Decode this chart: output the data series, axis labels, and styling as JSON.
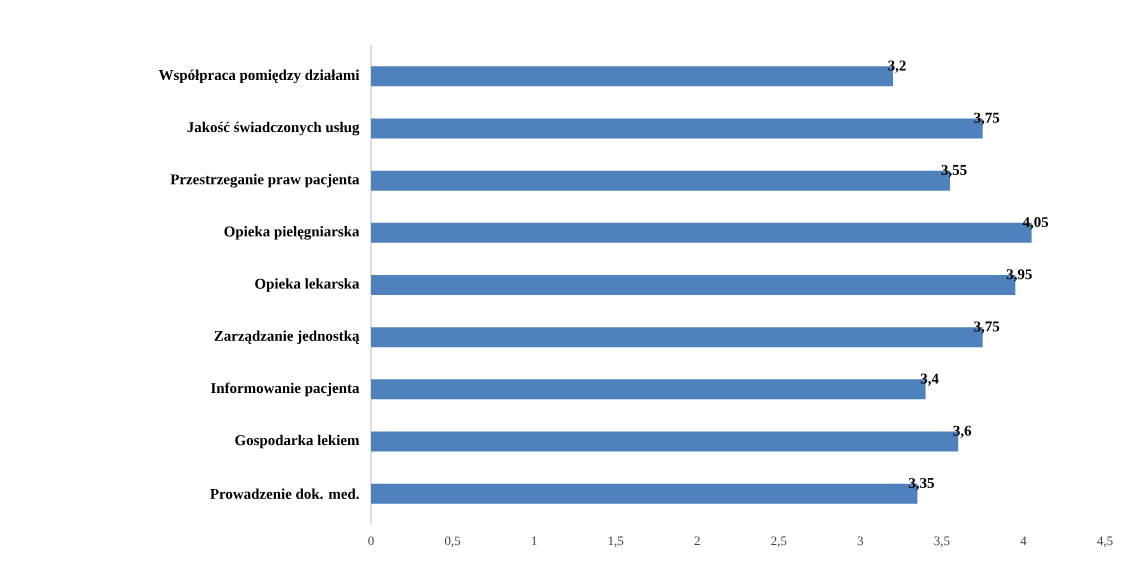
{
  "chart_data": {
    "type": "bar",
    "orientation": "horizontal",
    "categories": [
      "Współpraca pomiędzy działami",
      "Jakość świadczonych usług",
      "Przestrzeganie praw pacjenta",
      "Opieka pielęgniarska",
      "Opieka lekarska",
      "Zarządzanie jednostką",
      "Informowanie pacjenta",
      "Gospodarka lekiem",
      "Prowadzenie dok. med."
    ],
    "values": [
      3.2,
      3.75,
      3.55,
      4.05,
      3.95,
      3.75,
      3.4,
      3.6,
      3.35
    ],
    "value_labels": [
      "3,2",
      "3,75",
      "3,55",
      "4,05",
      "3,95",
      "3,75",
      "3,4",
      "3,6",
      "3,35"
    ],
    "color": "#4f81bd",
    "xlim": [
      0,
      4.5
    ],
    "xticks": [
      0,
      {
        "value": 0.5,
        "label": "0,5"
      },
      1,
      {
        "value": 1.5,
        "label": "1,5"
      },
      2,
      {
        "value": 2.5,
        "label": "2,5"
      },
      3,
      {
        "value": 3.5,
        "label": "3,5"
      },
      4,
      {
        "value": 4.5,
        "label": "4,5"
      }
    ]
  }
}
